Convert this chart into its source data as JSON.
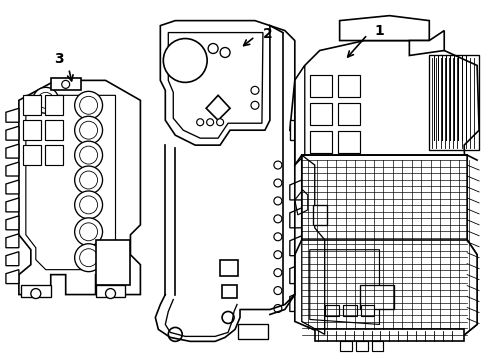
{
  "background_color": "#ffffff",
  "line_color": "#000000",
  "line_width": 1.2,
  "label_1": "1",
  "label_2": "2",
  "label_3": "3",
  "figsize": [
    4.9,
    3.6
  ],
  "dpi": 100,
  "xlim": [
    0,
    490
  ],
  "ylim": [
    0,
    360
  ]
}
